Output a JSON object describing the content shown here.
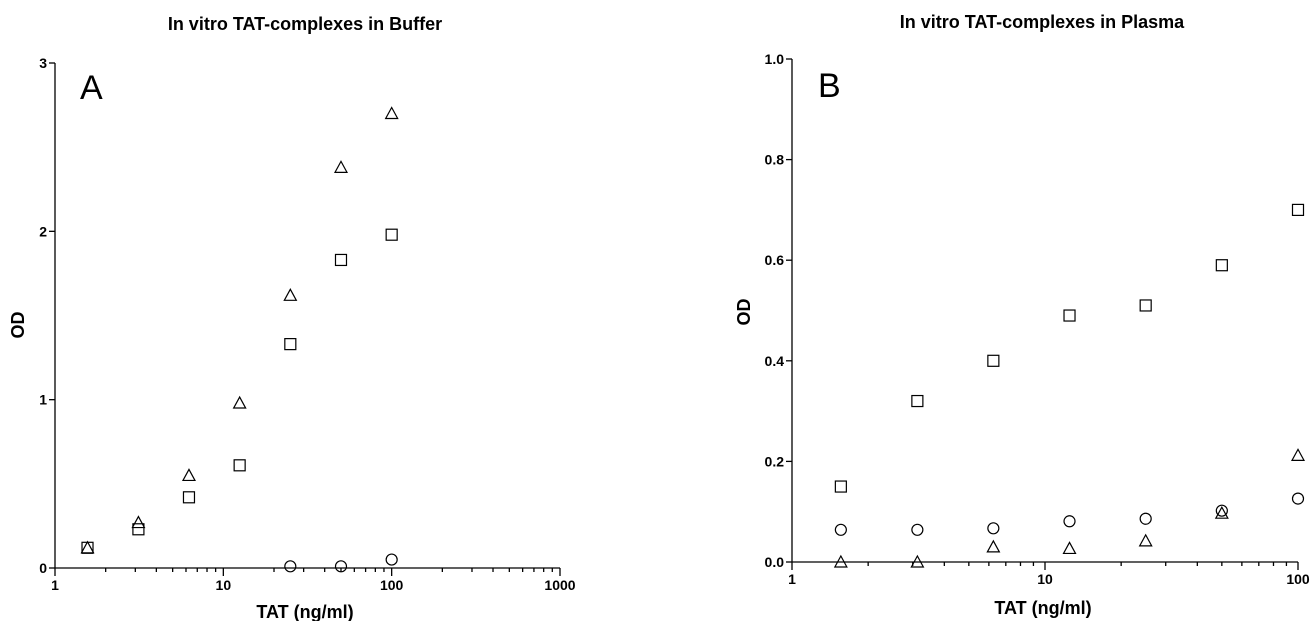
{
  "chart_data": [
    {
      "type": "scatter",
      "title": "In vitro TAT-complexes in Buffer",
      "panel_label": "A",
      "xlabel": "TAT (ng/ml)",
      "ylabel": "OD",
      "x_scale": "log",
      "xlim": [
        1,
        1000
      ],
      "ylim": [
        0,
        3
      ],
      "x_ticks": [
        1,
        10,
        100,
        1000
      ],
      "x_tick_labels": [
        "1",
        "10",
        "100",
        "1000"
      ],
      "y_ticks": [
        0,
        1,
        2,
        3
      ],
      "y_tick_labels": [
        "0",
        "1",
        "2",
        "3"
      ],
      "grid": false,
      "series": [
        {
          "marker": "triangle",
          "x": [
            1.56,
            3.13,
            6.25,
            12.5,
            25,
            50,
            100
          ],
          "y": [
            0.12,
            0.27,
            0.55,
            0.98,
            1.62,
            2.38,
            2.7
          ]
        },
        {
          "marker": "square",
          "x": [
            1.56,
            3.13,
            6.25,
            12.5,
            25,
            50,
            100
          ],
          "y": [
            0.12,
            0.23,
            0.42,
            0.61,
            1.33,
            1.83,
            1.98
          ]
        },
        {
          "marker": "circle",
          "x": [
            25,
            50,
            100
          ],
          "y": [
            0.01,
            0.01,
            0.05
          ]
        }
      ]
    },
    {
      "type": "scatter",
      "title": "In vitro TAT-complexes in Plasma",
      "panel_label": "B",
      "xlabel": "TAT (ng/ml)",
      "ylabel": "OD",
      "x_scale": "log",
      "xlim": [
        1,
        100
      ],
      "ylim": [
        0,
        1.0
      ],
      "x_ticks": [
        1,
        10,
        100
      ],
      "x_tick_labels": [
        "1",
        "10",
        "100"
      ],
      "y_ticks": [
        0,
        0.2,
        0.4,
        0.6,
        0.8,
        1.0
      ],
      "y_tick_labels": [
        "0.0",
        "0.2",
        "0.4",
        "0.6",
        "0.8",
        "1.0"
      ],
      "grid": false,
      "series": [
        {
          "marker": "square",
          "x": [
            1.56,
            3.13,
            6.25,
            12.5,
            25,
            50,
            100
          ],
          "y": [
            0.15,
            0.32,
            0.4,
            0.49,
            0.51,
            0.59,
            0.7
          ]
        },
        {
          "marker": "circle",
          "x": [
            1.56,
            3.13,
            6.25,
            12.5,
            25,
            50,
            100
          ],
          "y": [
            0.064,
            0.064,
            0.067,
            0.081,
            0.086,
            0.102,
            0.126
          ]
        },
        {
          "marker": "triangle",
          "x": [
            1.56,
            3.13,
            6.25,
            12.5,
            25,
            50,
            100
          ],
          "y": [
            0.0,
            0.0,
            0.03,
            0.027,
            0.042,
            0.097,
            0.212
          ]
        }
      ]
    }
  ]
}
